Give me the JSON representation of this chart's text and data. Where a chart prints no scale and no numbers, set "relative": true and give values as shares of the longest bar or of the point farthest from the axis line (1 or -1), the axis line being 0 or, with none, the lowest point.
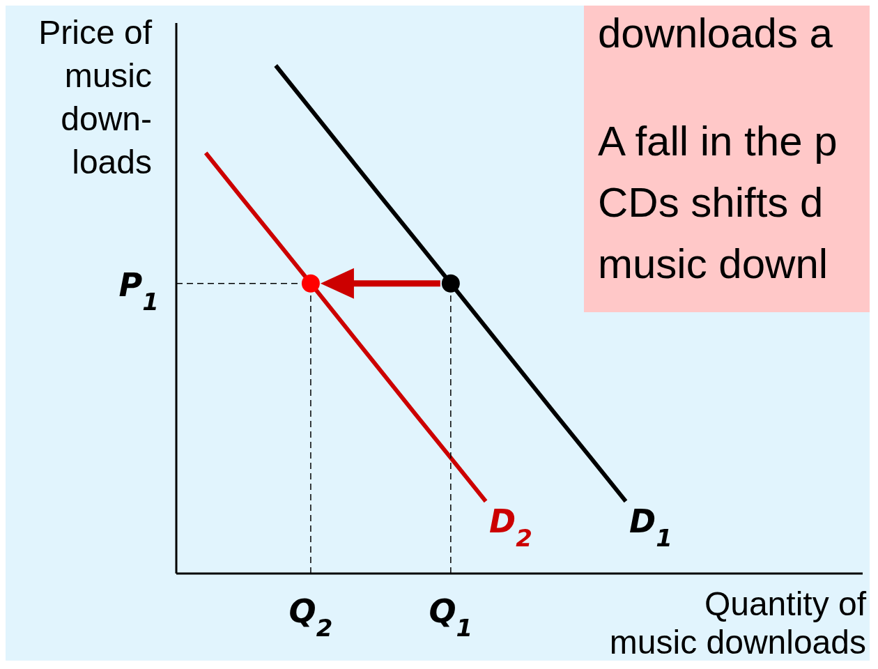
{
  "chart_data": {
    "type": "line",
    "relative": true,
    "xlabel": "Quantity of\nmusic downloads",
    "ylabel": "Price of\nmusic\ndown-\nloads",
    "categories": [
      null,
      null,
      null,
      null,
      "Q$_{2}$",
      null,
      null,
      null,
      "Q$_{1}$",
      null,
      null,
      null,
      null,
      null
    ],
    "series": [
      {
        "name": "D$_{1}$",
        "color": "#000000",
        "values": [
          null,
          null,
          null,
          1,
          0.914,
          0.828,
          0.742,
          0.657,
          0.571,
          0.485,
          0.399,
          0.313,
          0.228,
          0.142
        ]
      },
      {
        "name": "D$_{2}$",
        "color": "#cc0000",
        "values": [
          null,
          0.828,
          0.742,
          0.657,
          0.571,
          0.485,
          0.399,
          0.313,
          0.228,
          0.142,
          null,
          null,
          null,
          null
        ]
      },
      {
        "type": "scatter",
        "color": "#000000",
        "values": [
          null,
          null,
          null,
          null,
          null,
          null,
          null,
          null,
          0.571,
          null,
          null,
          null,
          null,
          null
        ]
      },
      {
        "type": "scatter",
        "color": "#ff0000",
        "values": [
          null,
          null,
          null,
          null,
          0.571,
          null,
          null,
          null,
          null,
          null,
          null,
          null,
          null,
          null
        ]
      }
    ],
    "ref_lines": [
      {
        "axis": "y",
        "value": 0.571,
        "label": "P$_{1}$",
        "line_style": "dashed",
        "color": "#000000"
      }
    ],
    "annotations": [
      "downloads a",
      "A fall in the p",
      "CDs shifts d",
      "music downl"
    ]
  }
}
